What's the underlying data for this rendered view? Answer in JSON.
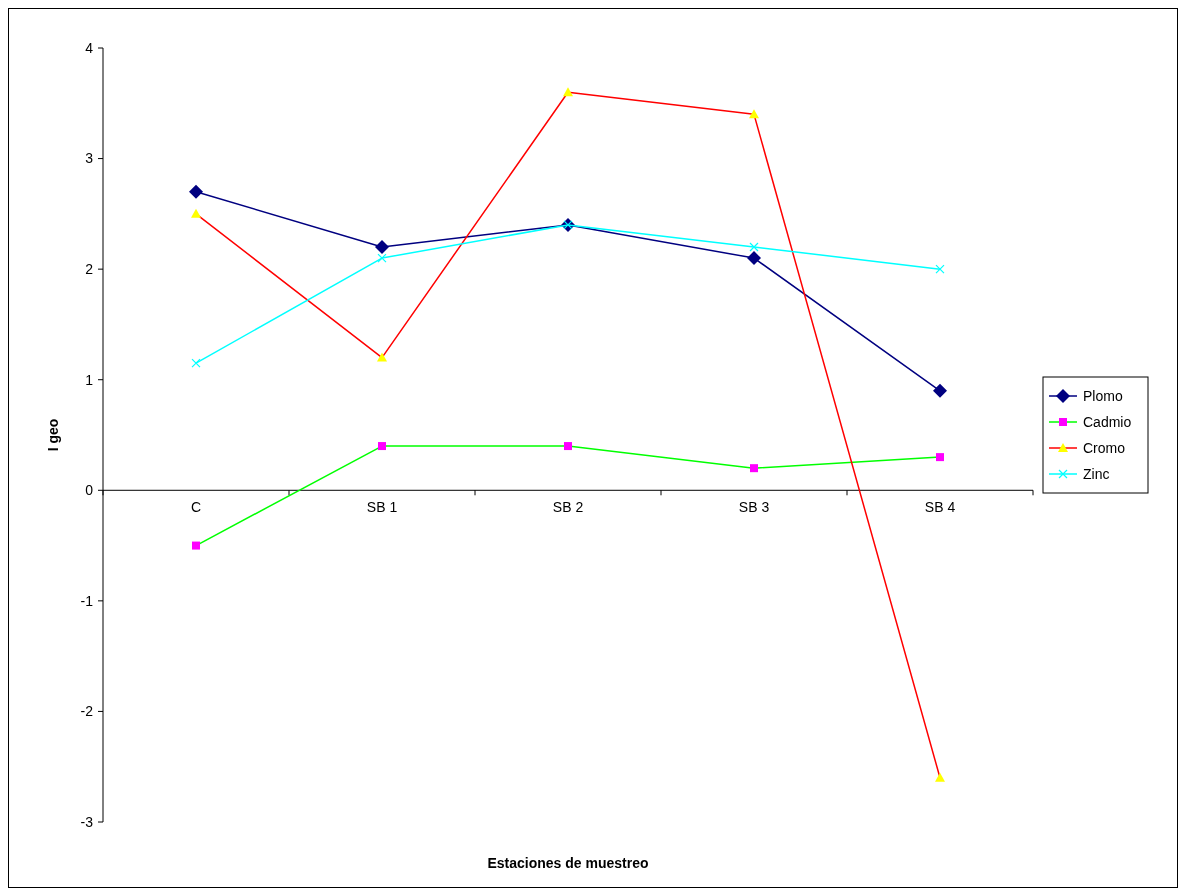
{
  "chart_data": {
    "type": "line",
    "xlabel": "Estaciones de muestreo",
    "ylabel": "I geo",
    "categories": [
      "C",
      "SB 1",
      "SB 2",
      "SB 3",
      "SB 4"
    ],
    "series": [
      {
        "name": "Plomo",
        "color": "#000080",
        "marker": "diamond",
        "colors": [
          "#000080",
          "#000080",
          "#000080",
          "#000080",
          "#000080"
        ],
        "values": [
          2.7,
          2.2,
          2.4,
          2.1,
          0.9
        ]
      },
      {
        "name": "Cadmio",
        "color": "#00ff00",
        "marker": "square",
        "colors": [
          "#ff00ff",
          "#ff00ff",
          "#ff00ff",
          "#ff00ff",
          "#ff00ff"
        ],
        "values": [
          -0.5,
          0.4,
          0.4,
          0.2,
          0.3
        ]
      },
      {
        "name": "Cromo",
        "color": "#ff0000",
        "marker": "triangle",
        "colors": [
          "#ffff00",
          "#ffff00",
          "#ffff00",
          "#ffff00",
          "#ffff00"
        ],
        "values": [
          2.5,
          1.2,
          3.6,
          3.4,
          -2.6
        ]
      },
      {
        "name": "Zinc",
        "color": "#00ffff",
        "marker": "cross",
        "colors": [
          "#00ffff",
          "#00ffff",
          "#00ffff",
          "#00ffff",
          "#00ffff"
        ],
        "values": [
          1.15,
          2.1,
          2.4,
          2.2,
          2.0
        ]
      }
    ],
    "ylim": [
      -3,
      4
    ],
    "yticks": [
      -3,
      -2,
      -1,
      0,
      1,
      2,
      3,
      4
    ],
    "grid": false,
    "legend": "right"
  }
}
